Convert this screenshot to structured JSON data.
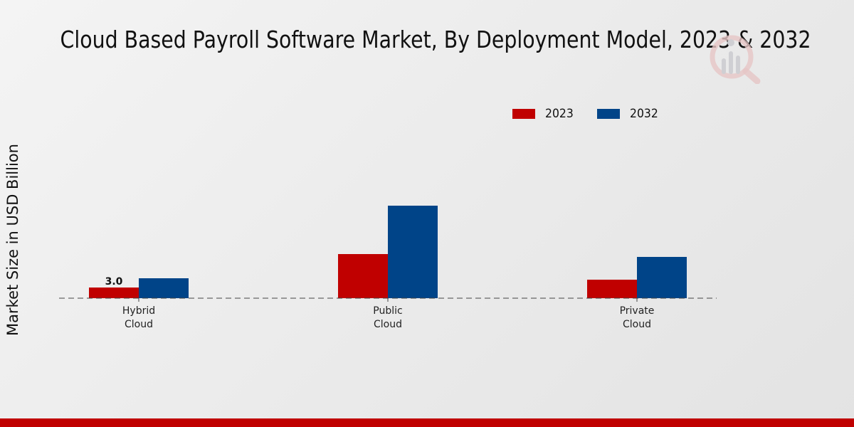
{
  "chart_data": {
    "type": "bar",
    "title": "Cloud Based Payroll Software Market, By Deployment Model, 2023 & 2032",
    "xlabel": "",
    "ylabel": "Market Size in USD Billion",
    "categories": [
      "Hybrid Cloud",
      "Public Cloud",
      "Private Cloud"
    ],
    "category_lines": [
      [
        "Hybrid",
        "Cloud"
      ],
      [
        "Public",
        "Cloud"
      ],
      [
        "Private",
        "Cloud"
      ]
    ],
    "series": [
      {
        "name": "2023",
        "color": "#c00000",
        "values": [
          3.0,
          12.4,
          5.2
        ]
      },
      {
        "name": "2032",
        "color": "#004488",
        "values": [
          5.6,
          26.0,
          11.6
        ]
      }
    ],
    "data_labels": [
      {
        "series": "2023",
        "category": "Hybrid Cloud",
        "text": "3.0"
      }
    ],
    "ylim": [
      0,
      30
    ],
    "grid": false,
    "baseline_style": "dashed",
    "legend_position": "top-right"
  },
  "colors": {
    "accent_red": "#c00000",
    "accent_blue": "#004488",
    "footer": "#c00000"
  },
  "watermark": {
    "icon": "magnifier-chart-logo-icon"
  }
}
